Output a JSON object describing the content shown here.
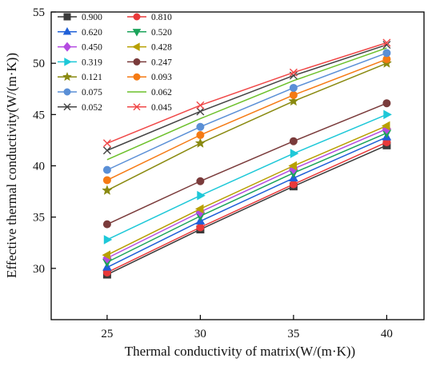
{
  "chart_data": {
    "type": "line",
    "xlabel": "Thermal conductivity of matrix(W/(m·K))",
    "ylabel": "Effective thermal conductivity(W/(m·K))",
    "x": [
      25,
      30,
      35,
      40
    ],
    "xlim": [
      22,
      42
    ],
    "ylim": [
      25,
      55
    ],
    "xticks": [
      25,
      30,
      35,
      40
    ],
    "yticks": [
      30,
      35,
      40,
      45,
      50,
      55
    ],
    "grid": false,
    "legend_position": "top-left",
    "series": [
      {
        "name": "0.900",
        "color": "#3a3a3a",
        "marker": "square",
        "values": [
          29.4,
          33.8,
          38.0,
          42.0
        ]
      },
      {
        "name": "0.810",
        "color": "#e8393a",
        "marker": "circle",
        "values": [
          29.6,
          34.0,
          38.2,
          42.3
        ]
      },
      {
        "name": "0.620",
        "color": "#2060d8",
        "marker": "triangle-up",
        "values": [
          30.1,
          34.6,
          38.8,
          42.8
        ]
      },
      {
        "name": "0.520",
        "color": "#1aa35a",
        "marker": "triangle-down",
        "values": [
          30.6,
          35.1,
          39.3,
          43.2
        ]
      },
      {
        "name": "0.450",
        "color": "#b44be1",
        "marker": "diamond",
        "values": [
          31.0,
          35.5,
          39.7,
          43.6
        ]
      },
      {
        "name": "0.428",
        "color": "#b8a000",
        "marker": "triangle-left",
        "values": [
          31.3,
          35.8,
          40.0,
          43.9
        ]
      },
      {
        "name": "0.319",
        "color": "#1ec8d8",
        "marker": "triangle-right",
        "values": [
          32.8,
          37.1,
          41.2,
          45.0
        ]
      },
      {
        "name": "0.247",
        "color": "#7a3b3b",
        "marker": "circle",
        "values": [
          34.3,
          38.5,
          42.4,
          46.1
        ]
      },
      {
        "name": "0.121",
        "color": "#8a8a10",
        "marker": "star",
        "values": [
          37.6,
          42.2,
          46.3,
          50.0
        ]
      },
      {
        "name": "0.093",
        "color": "#f57a14",
        "marker": "circle",
        "values": [
          38.6,
          43.0,
          46.9,
          50.4
        ]
      },
      {
        "name": "0.075",
        "color": "#5a8fd6",
        "marker": "circle",
        "values": [
          39.6,
          43.8,
          47.6,
          51.0
        ]
      },
      {
        "name": "0.062",
        "color": "#6cc02a",
        "marker": "none",
        "values": [
          40.6,
          44.6,
          48.3,
          51.5
        ]
      },
      {
        "name": "0.052",
        "color": "#444444",
        "marker": "x",
        "values": [
          41.5,
          45.3,
          48.8,
          51.8
        ]
      },
      {
        "name": "0.045",
        "color": "#f04848",
        "marker": "x",
        "values": [
          42.2,
          45.9,
          49.1,
          52.0
        ]
      }
    ]
  }
}
